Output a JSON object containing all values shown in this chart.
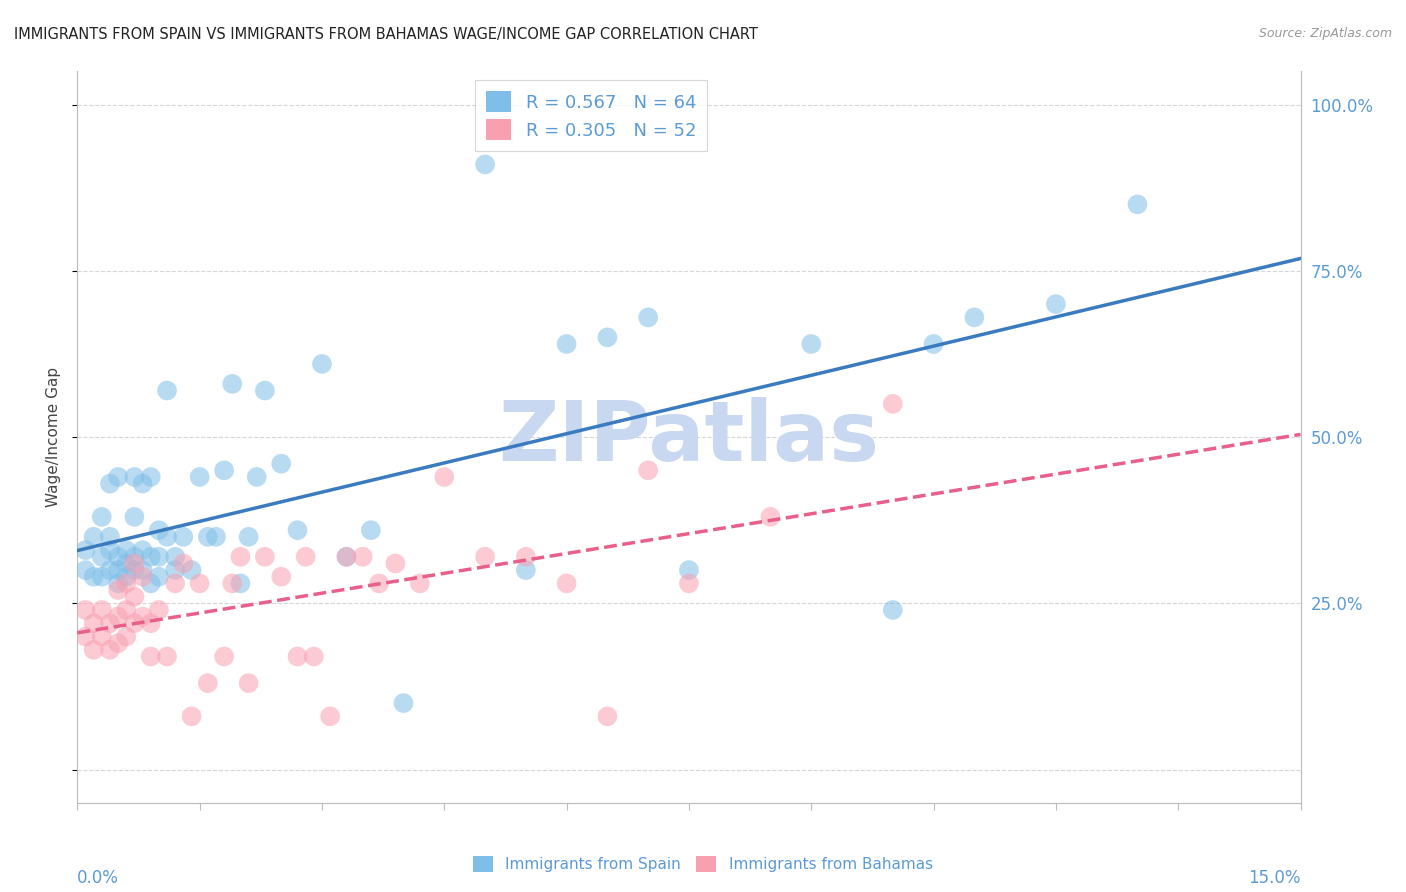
{
  "title": "IMMIGRANTS FROM SPAIN VS IMMIGRANTS FROM BAHAMAS WAGE/INCOME GAP CORRELATION CHART",
  "source": "Source: ZipAtlas.com",
  "ylabel": "Wage/Income Gap",
  "right_yticklabels": [
    "",
    "25.0%",
    "50.0%",
    "75.0%",
    "100.0%"
  ],
  "xmin": 0.0,
  "xmax": 0.15,
  "ymin": -0.05,
  "ymax": 1.05,
  "spain_R": 0.567,
  "spain_N": 64,
  "bahamas_R": 0.305,
  "bahamas_N": 52,
  "spain_color": "#7fbee8",
  "bahamas_color": "#f9a0b0",
  "spain_line_color": "#3a7bbf",
  "bahamas_line_color": "#e8608a",
  "watermark": "ZIPatlas",
  "watermark_color": "#c8d8f0",
  "legend_label_spain": "Immigrants from Spain",
  "legend_label_bahamas": "Immigrants from Bahamas",
  "spain_x": [
    0.001,
    0.001,
    0.002,
    0.002,
    0.003,
    0.003,
    0.003,
    0.004,
    0.004,
    0.004,
    0.004,
    0.005,
    0.005,
    0.005,
    0.005,
    0.006,
    0.006,
    0.006,
    0.007,
    0.007,
    0.007,
    0.007,
    0.008,
    0.008,
    0.008,
    0.009,
    0.009,
    0.009,
    0.01,
    0.01,
    0.01,
    0.011,
    0.011,
    0.012,
    0.012,
    0.013,
    0.014,
    0.015,
    0.016,
    0.017,
    0.018,
    0.019,
    0.02,
    0.021,
    0.022,
    0.023,
    0.025,
    0.027,
    0.03,
    0.033,
    0.036,
    0.04,
    0.05,
    0.055,
    0.06,
    0.065,
    0.07,
    0.075,
    0.09,
    0.1,
    0.105,
    0.11,
    0.12,
    0.13
  ],
  "spain_y": [
    0.3,
    0.33,
    0.29,
    0.35,
    0.29,
    0.32,
    0.38,
    0.3,
    0.33,
    0.35,
    0.43,
    0.28,
    0.3,
    0.32,
    0.44,
    0.29,
    0.31,
    0.33,
    0.3,
    0.32,
    0.38,
    0.44,
    0.3,
    0.33,
    0.43,
    0.28,
    0.32,
    0.44,
    0.29,
    0.32,
    0.36,
    0.35,
    0.57,
    0.3,
    0.32,
    0.35,
    0.3,
    0.44,
    0.35,
    0.35,
    0.45,
    0.58,
    0.28,
    0.35,
    0.44,
    0.57,
    0.46,
    0.36,
    0.61,
    0.32,
    0.36,
    0.1,
    0.91,
    0.3,
    0.64,
    0.65,
    0.68,
    0.3,
    0.64,
    0.24,
    0.64,
    0.68,
    0.7,
    0.85
  ],
  "bahamas_x": [
    0.001,
    0.001,
    0.002,
    0.002,
    0.003,
    0.003,
    0.004,
    0.004,
    0.005,
    0.005,
    0.005,
    0.006,
    0.006,
    0.006,
    0.007,
    0.007,
    0.007,
    0.008,
    0.008,
    0.009,
    0.009,
    0.01,
    0.011,
    0.012,
    0.013,
    0.014,
    0.015,
    0.016,
    0.018,
    0.019,
    0.02,
    0.021,
    0.023,
    0.025,
    0.027,
    0.028,
    0.029,
    0.031,
    0.033,
    0.035,
    0.037,
    0.039,
    0.042,
    0.045,
    0.05,
    0.055,
    0.06,
    0.065,
    0.07,
    0.075,
    0.085,
    0.1
  ],
  "bahamas_y": [
    0.2,
    0.24,
    0.18,
    0.22,
    0.2,
    0.24,
    0.18,
    0.22,
    0.19,
    0.23,
    0.27,
    0.2,
    0.24,
    0.28,
    0.22,
    0.26,
    0.31,
    0.23,
    0.29,
    0.22,
    0.17,
    0.24,
    0.17,
    0.28,
    0.31,
    0.08,
    0.28,
    0.13,
    0.17,
    0.28,
    0.32,
    0.13,
    0.32,
    0.29,
    0.17,
    0.32,
    0.17,
    0.08,
    0.32,
    0.32,
    0.28,
    0.31,
    0.28,
    0.44,
    0.32,
    0.32,
    0.28,
    0.08,
    0.45,
    0.28,
    0.38,
    0.55
  ]
}
